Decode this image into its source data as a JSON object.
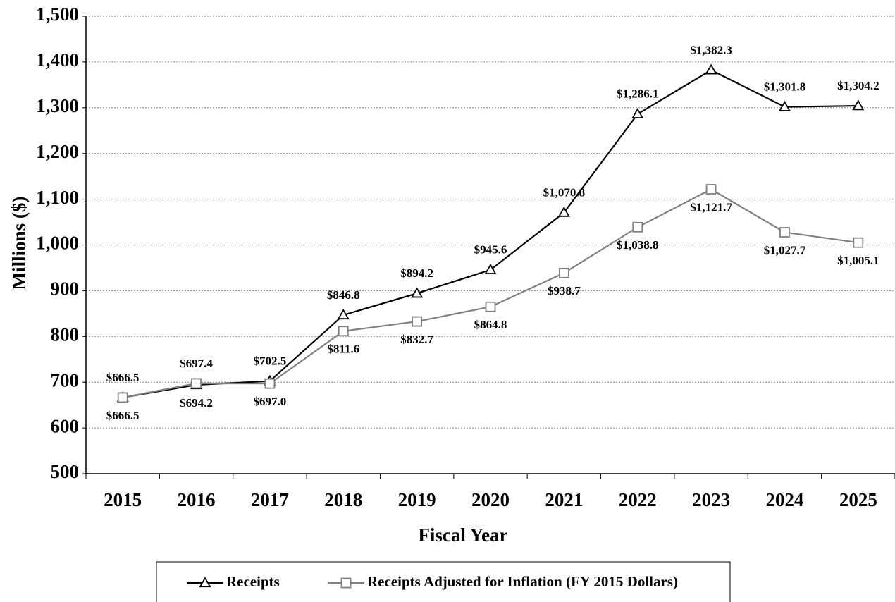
{
  "chart_data": {
    "type": "line",
    "x_label": "Fiscal Year",
    "y_label": "Millions ($)",
    "categories": [
      "2015",
      "2016",
      "2017",
      "2018",
      "2019",
      "2020",
      "2021",
      "2022",
      "2023",
      "2024",
      "2025"
    ],
    "series": [
      {
        "name": "Receipts",
        "color": "#000000",
        "marker": "triangle",
        "values": [
          666.5,
          694.2,
          702.5,
          846.8,
          894.2,
          945.6,
          1070.8,
          1286.1,
          1382.3,
          1301.8,
          1304.2
        ],
        "value_labels": [
          "$666.5",
          "$694.2",
          "$702.5",
          "$846.8",
          "$894.2",
          "$945.6",
          "$1,070.8",
          "$1,286.1",
          "$1,382.3",
          "$1,301.8",
          "$1,304.2"
        ]
      },
      {
        "name": "Receipts Adjusted for Inflation (FY 2015 Dollars)",
        "color": "#808080",
        "marker": "square",
        "values": [
          666.5,
          697.4,
          697.0,
          811.6,
          832.7,
          864.8,
          938.7,
          1038.8,
          1121.7,
          1027.7,
          1005.1
        ],
        "value_labels": [
          "$666.5",
          "$697.4",
          "$697.0",
          "$811.6",
          "$832.7",
          "$864.8",
          "$938.7",
          "$1,038.8",
          "$1,121.7",
          "$1,027.7",
          "$1,005.1"
        ]
      }
    ],
    "ylim": [
      500,
      1500
    ],
    "yticks": [
      500,
      600,
      700,
      800,
      900,
      {
        "value": 1000,
        "label": "1,000"
      },
      {
        "value": 1100,
        "label": "1,100"
      },
      {
        "value": 1200,
        "label": "1,200"
      },
      {
        "value": 1300,
        "label": "1,300"
      },
      {
        "value": 1400,
        "label": "1,400"
      },
      {
        "value": 1500,
        "label": "1,500"
      }
    ],
    "grid": true,
    "legend": "bottom"
  }
}
